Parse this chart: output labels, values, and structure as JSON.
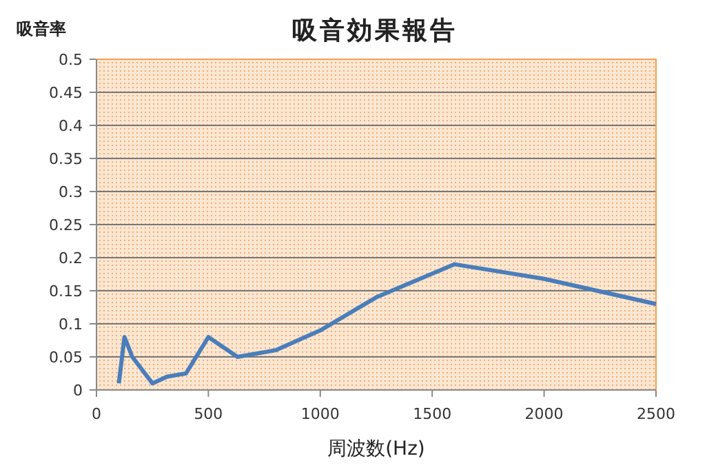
{
  "chart_data": {
    "type": "line",
    "title": "吸音効果報告",
    "xlabel": "周波数(Hz)",
    "ylabel": "吸音率",
    "x": [
      100,
      125,
      160,
      250,
      315,
      400,
      500,
      630,
      800,
      1000,
      1250,
      1600,
      2000,
      2500
    ],
    "series": [
      {
        "color": "#4a7ebb",
        "values": [
          0.01,
          0.08,
          0.05,
          0.01,
          0.02,
          0.025,
          0.08,
          0.05,
          0.06,
          0.09,
          0.14,
          0.19,
          0.168,
          0.13
        ]
      }
    ],
    "xlim": [
      0,
      2500
    ],
    "xticks": [
      0,
      500,
      1000,
      1500,
      2000,
      2500
    ],
    "ylim": [
      0,
      0.5
    ],
    "yticks": [
      0,
      0.05,
      0.1,
      0.15,
      0.2,
      0.25,
      0.3,
      0.35,
      0.4,
      0.45,
      0.5
    ],
    "grid": "y",
    "marker": "none",
    "line_style": "solid"
  }
}
